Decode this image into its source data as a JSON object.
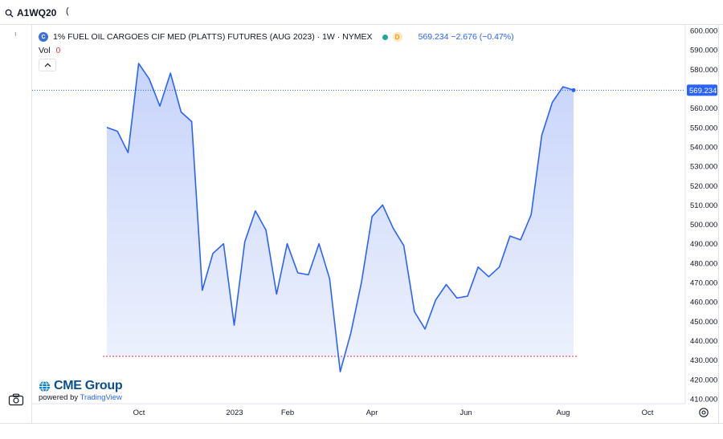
{
  "toolbar": {
    "symbol_input": "A1WQ20",
    "paren": "("
  },
  "legend": {
    "title": "1% FUEL OIL CARGOES CIF MED (PLATTS) FUTURES (AUG 2023) · 1W · NYMEX",
    "delay_badge": "D",
    "price_text": "569.234  −2.676 (−0.47%)"
  },
  "volume": {
    "label": "Vol",
    "value": "0"
  },
  "branding": {
    "company": "CME Group",
    "powered_by": "powered by",
    "tradingview": "TradingView"
  },
  "colors": {
    "line": "#2962ff",
    "area_top": "#c7d4fb",
    "area_bottom": "#eef2fd",
    "price_label_bg": "#2962ff",
    "baseline": "#f23645"
  },
  "chart_data": {
    "type": "area",
    "title": "1% FUEL OIL CARGOES CIF MED (PLATTS) FUTURES (AUG 2023) · 1W · NYMEX",
    "xlabel": "",
    "ylabel": "",
    "ylim": [
      405,
      605
    ],
    "y_ticks": [
      "600.000",
      "590.000",
      "580.000",
      "570.000",
      "560.000",
      "550.000",
      "540.000",
      "530.000",
      "520.000",
      "510.000",
      "500.000",
      "490.000",
      "480.000",
      "470.000",
      "460.000",
      "450.000",
      "440.000",
      "430.000",
      "420.000",
      "410.000"
    ],
    "x_ticks": [
      "Oct",
      "2023",
      "Feb",
      "Apr",
      "Jun",
      "Aug",
      "Oct"
    ],
    "last_price_label": "569.234",
    "grid": false,
    "series": [
      {
        "values": [
          550,
          548,
          537,
          583,
          575,
          561,
          578,
          558,
          553,
          466,
          485,
          490,
          448,
          491,
          507,
          497,
          464,
          490,
          475,
          474,
          490,
          472,
          424,
          444,
          470,
          504,
          510,
          498,
          489,
          455,
          446,
          461,
          469,
          462,
          463,
          478,
          473,
          478,
          494,
          492,
          505,
          546,
          563,
          571,
          569.234
        ]
      }
    ]
  }
}
